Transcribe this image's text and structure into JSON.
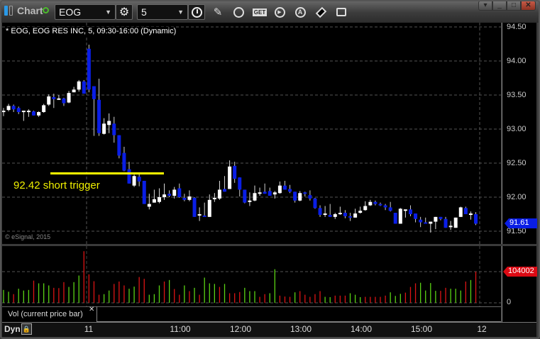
{
  "toolbar": {
    "title": "Chart",
    "symbol": "EOG",
    "interval": "5",
    "icons": [
      "layout-toggle-icon",
      "link-status-icon",
      "gear-icon",
      "clock-icon",
      "pencil-icon",
      "chart-style-icon",
      "get-data-icon",
      "play-icon",
      "alert-icon",
      "eraser-icon",
      "comment-icon"
    ],
    "window_buttons": [
      "window-menu",
      "minimize",
      "maximize",
      "close"
    ]
  },
  "chart": {
    "header": "* EOG, EOG RES INC, 5, 09:30-16:00 (Dynamic)",
    "copyright": "© eSignal, 2015",
    "annotation": "92.42 short trigger",
    "annotation_level": 92.42,
    "last_price": "91.61",
    "price_ticks": [
      "94.50",
      "94.00",
      "93.50",
      "93.00",
      "92.50",
      "92.00",
      "91.50"
    ],
    "colors": {
      "up": "#ffffff",
      "down": "#0a1ee6",
      "annotation": "#ffff00",
      "last_price_tag": "#0a1ee6",
      "vol_up": "#5ad214",
      "vol_down": "#dc1414",
      "vol_tag": "#dc0a14"
    }
  },
  "chart_data": {
    "type": "candlestick",
    "ylim": [
      91.45,
      94.55
    ],
    "ohlc": [
      [
        93.25,
        93.31,
        93.19,
        93.27
      ],
      [
        93.28,
        93.37,
        93.26,
        93.34
      ],
      [
        93.34,
        93.36,
        93.25,
        93.29
      ],
      [
        93.31,
        93.33,
        93.22,
        93.25
      ],
      [
        93.25,
        93.27,
        93.12,
        93.27
      ],
      [
        93.26,
        93.29,
        93.18,
        93.27
      ],
      [
        93.26,
        93.27,
        93.2,
        93.2
      ],
      [
        93.2,
        93.26,
        93.18,
        93.25
      ],
      [
        93.25,
        93.37,
        93.24,
        93.35
      ],
      [
        93.36,
        93.51,
        93.34,
        93.48
      ],
      [
        93.47,
        93.52,
        93.31,
        93.44
      ],
      [
        93.43,
        93.5,
        93.43,
        93.45
      ],
      [
        93.45,
        93.46,
        93.34,
        93.38
      ],
      [
        93.39,
        93.56,
        93.38,
        93.53
      ],
      [
        93.54,
        93.62,
        93.54,
        93.58
      ],
      [
        93.58,
        93.72,
        93.55,
        93.7
      ],
      [
        93.7,
        93.72,
        93.52,
        93.52
      ],
      [
        94.18,
        94.24,
        93.54,
        93.58
      ],
      [
        93.63,
        93.63,
        92.9,
        93.44
      ],
      [
        93.43,
        93.74,
        92.9,
        92.94
      ],
      [
        92.93,
        93.16,
        92.92,
        93.08
      ],
      [
        93.06,
        93.23,
        92.94,
        93.12
      ],
      [
        93.08,
        93.18,
        92.8,
        92.91
      ],
      [
        92.91,
        92.91,
        92.57,
        92.61
      ],
      [
        92.65,
        92.74,
        92.38,
        92.39
      ],
      [
        92.41,
        92.52,
        92.2,
        92.2
      ],
      [
        92.17,
        92.33,
        92.15,
        92.31
      ],
      [
        92.3,
        92.36,
        92.16,
        92.23
      ],
      [
        92.24,
        92.24,
        91.9,
        91.9
      ],
      [
        91.86,
        92.05,
        91.82,
        91.9
      ],
      [
        91.92,
        92.11,
        91.92,
        91.97
      ],
      [
        91.93,
        92.13,
        91.91,
        92.0
      ],
      [
        92.0,
        92.2,
        91.96,
        92.04
      ],
      [
        92.05,
        92.1,
        92.0,
        92.02
      ],
      [
        92.02,
        92.15,
        91.98,
        92.11
      ],
      [
        92.13,
        92.2,
        91.99,
        92.0
      ],
      [
        91.99,
        92.05,
        91.94,
        91.96
      ],
      [
        91.96,
        92.1,
        91.94,
        92.01
      ],
      [
        91.99,
        92.0,
        91.71,
        91.71
      ],
      [
        91.74,
        91.85,
        91.65,
        91.75
      ],
      [
        91.73,
        91.92,
        91.71,
        91.71
      ],
      [
        91.71,
        92.04,
        91.71,
        91.96
      ],
      [
        91.97,
        92.06,
        91.93,
        91.99
      ],
      [
        91.98,
        92.24,
        91.96,
        92.11
      ],
      [
        92.12,
        92.31,
        92.08,
        92.08
      ],
      [
        92.12,
        92.54,
        92.12,
        92.45
      ],
      [
        92.46,
        92.52,
        92.21,
        92.27
      ],
      [
        92.29,
        92.29,
        92.01,
        92.11
      ],
      [
        92.11,
        92.11,
        91.91,
        91.92
      ],
      [
        91.93,
        92.07,
        91.87,
        91.95
      ],
      [
        91.95,
        92.17,
        91.94,
        92.06
      ],
      [
        92.05,
        92.14,
        92.02,
        92.07
      ],
      [
        92.08,
        92.2,
        92.05,
        92.05
      ],
      [
        92.09,
        92.14,
        92.02,
        92.02
      ],
      [
        92.04,
        92.09,
        91.98,
        92.07
      ],
      [
        92.06,
        92.23,
        92.05,
        92.17
      ],
      [
        92.17,
        92.24,
        92.11,
        92.11
      ],
      [
        92.12,
        92.18,
        92.06,
        92.08
      ],
      [
        92.08,
        92.08,
        91.92,
        91.95
      ],
      [
        91.95,
        92.09,
        91.94,
        92.06
      ],
      [
        92.07,
        92.08,
        92.01,
        92.05
      ],
      [
        92.03,
        92.1,
        91.95,
        91.98
      ],
      [
        91.98,
        91.99,
        91.83,
        91.84
      ],
      [
        91.84,
        91.88,
        91.71,
        91.74
      ],
      [
        91.74,
        91.87,
        91.71,
        91.76
      ],
      [
        91.74,
        91.9,
        91.71,
        91.71
      ],
      [
        91.71,
        91.77,
        91.68,
        91.75
      ],
      [
        91.75,
        91.86,
        91.74,
        91.77
      ],
      [
        91.77,
        91.81,
        91.69,
        91.72
      ],
      [
        91.72,
        91.77,
        91.65,
        91.7
      ],
      [
        91.7,
        91.83,
        91.7,
        91.76
      ],
      [
        91.77,
        91.86,
        91.76,
        91.8
      ],
      [
        91.81,
        91.94,
        91.8,
        91.87
      ],
      [
        91.88,
        91.96,
        91.87,
        91.93
      ],
      [
        91.93,
        91.95,
        91.88,
        91.9
      ],
      [
        91.9,
        91.92,
        91.87,
        91.88
      ],
      [
        91.88,
        91.9,
        91.81,
        91.85
      ],
      [
        91.85,
        91.93,
        91.79,
        91.8
      ],
      [
        91.77,
        91.77,
        91.61,
        91.61
      ],
      [
        91.61,
        91.84,
        91.61,
        91.83
      ],
      [
        91.81,
        91.82,
        91.7,
        91.82
      ],
      [
        91.82,
        91.88,
        91.72,
        91.75
      ],
      [
        91.76,
        91.76,
        91.63,
        91.68
      ],
      [
        91.67,
        91.71,
        91.56,
        91.63
      ],
      [
        91.63,
        91.7,
        91.61,
        91.61
      ],
      [
        91.61,
        91.64,
        91.48,
        91.64
      ],
      [
        91.64,
        91.71,
        91.53,
        91.71
      ],
      [
        91.71,
        91.71,
        91.66,
        91.68
      ],
      [
        91.68,
        91.71,
        91.55,
        91.55
      ],
      [
        91.56,
        91.65,
        91.52,
        91.58
      ],
      [
        91.55,
        91.7,
        91.55,
        91.7
      ],
      [
        91.71,
        91.86,
        91.71,
        91.85
      ],
      [
        91.84,
        91.86,
        91.75,
        91.75
      ],
      [
        91.74,
        91.79,
        91.67,
        91.76
      ],
      [
        91.75,
        91.78,
        91.59,
        91.61
      ]
    ],
    "volume": {
      "label": "Vol (current price bar)",
      "last": "104002",
      "zero": "0",
      "values": [
        43000,
        37000,
        29000,
        47000,
        41000,
        43000,
        74000,
        65000,
        65000,
        58000,
        50000,
        49000,
        69000,
        53000,
        69000,
        91000,
        172000,
        95000,
        72000,
        27000,
        29000,
        41000,
        63000,
        71000,
        58000,
        47000,
        54000,
        86000,
        80000,
        27000,
        29000,
        58000,
        71000,
        76000,
        46000,
        27000,
        58000,
        39000,
        50000,
        27000,
        84000,
        65000,
        63000,
        53000,
        63000,
        32000,
        32000,
        36000,
        50000,
        39000,
        39000,
        20000,
        29000,
        32000,
        112000,
        24000,
        21000,
        20000,
        35000,
        39000,
        27000,
        20000,
        29000,
        39000,
        20000,
        19000,
        24000,
        24000,
        24000,
        32000,
        27000,
        19000,
        20000,
        20000,
        20000,
        20000,
        24000,
        35000,
        23000,
        30000,
        34000,
        53000,
        65000,
        67000,
        41000,
        66000,
        40000,
        40000,
        50000,
        47000,
        47000,
        41000,
        71000,
        76000,
        104002
      ],
      "up": [
        1,
        1,
        0,
        1,
        1,
        1,
        0,
        1,
        1,
        1,
        0,
        0,
        0,
        1,
        1,
        1,
        0,
        0,
        0,
        0,
        1,
        1,
        0,
        0,
        0,
        1,
        1,
        0,
        0,
        1,
        1,
        1,
        0,
        1,
        0,
        0,
        1,
        0,
        1,
        0,
        1,
        1,
        1,
        0,
        1,
        0,
        0,
        0,
        1,
        1,
        1,
        0,
        0,
        1,
        1,
        0,
        0,
        0,
        1,
        0,
        0,
        0,
        0,
        0,
        1,
        1,
        0,
        0,
        0,
        1,
        1,
        1,
        0,
        0,
        0,
        0,
        0,
        1,
        1,
        1,
        0,
        0,
        0,
        1,
        1,
        1,
        1,
        0,
        0,
        1,
        1,
        1,
        0,
        1,
        0
      ]
    },
    "x_ticks": [
      "11",
      "11:00",
      "12:00",
      "13:00",
      "14:00",
      "15:00",
      "12"
    ]
  },
  "footer": {
    "mode": "Dyn"
  }
}
